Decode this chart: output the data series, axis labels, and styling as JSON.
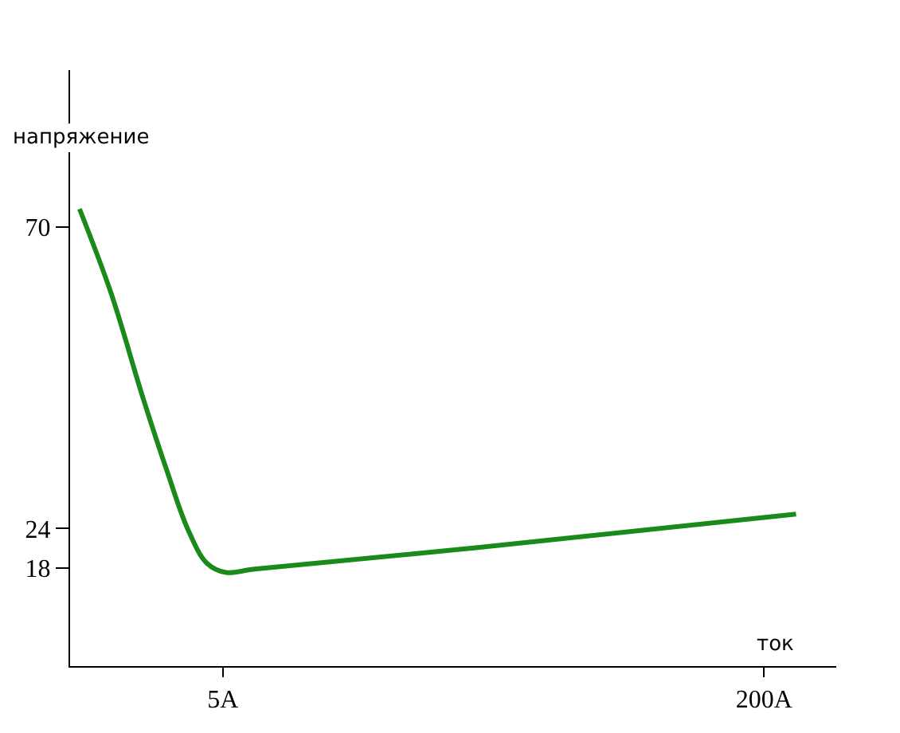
{
  "chart_data": {
    "type": "line",
    "xlabel": "ток",
    "ylabel": "напряжение",
    "x": [
      -46.6,
      -35.2,
      -23.7,
      -15.1,
      -7.6,
      -0.7,
      6.1,
      16.5,
      96.8,
      211.5
    ],
    "series": [
      {
        "color": "#1a8a1a",
        "values": [
          72.8,
          59.9,
          43.9,
          32.8,
          23.9,
          18.7,
          17.3,
          17.8,
          21.1,
          26.2
        ]
      }
    ],
    "xlim": [
      -50,
      226
    ],
    "xticks": [
      {
        "value": 5,
        "label": "5A"
      },
      {
        "value": 200,
        "label": "200A"
      }
    ],
    "ylim": [
      3,
      94
    ],
    "yticks": [
      18,
      24,
      70
    ],
    "legend": false,
    "marker": "none",
    "line_style": "solid"
  }
}
